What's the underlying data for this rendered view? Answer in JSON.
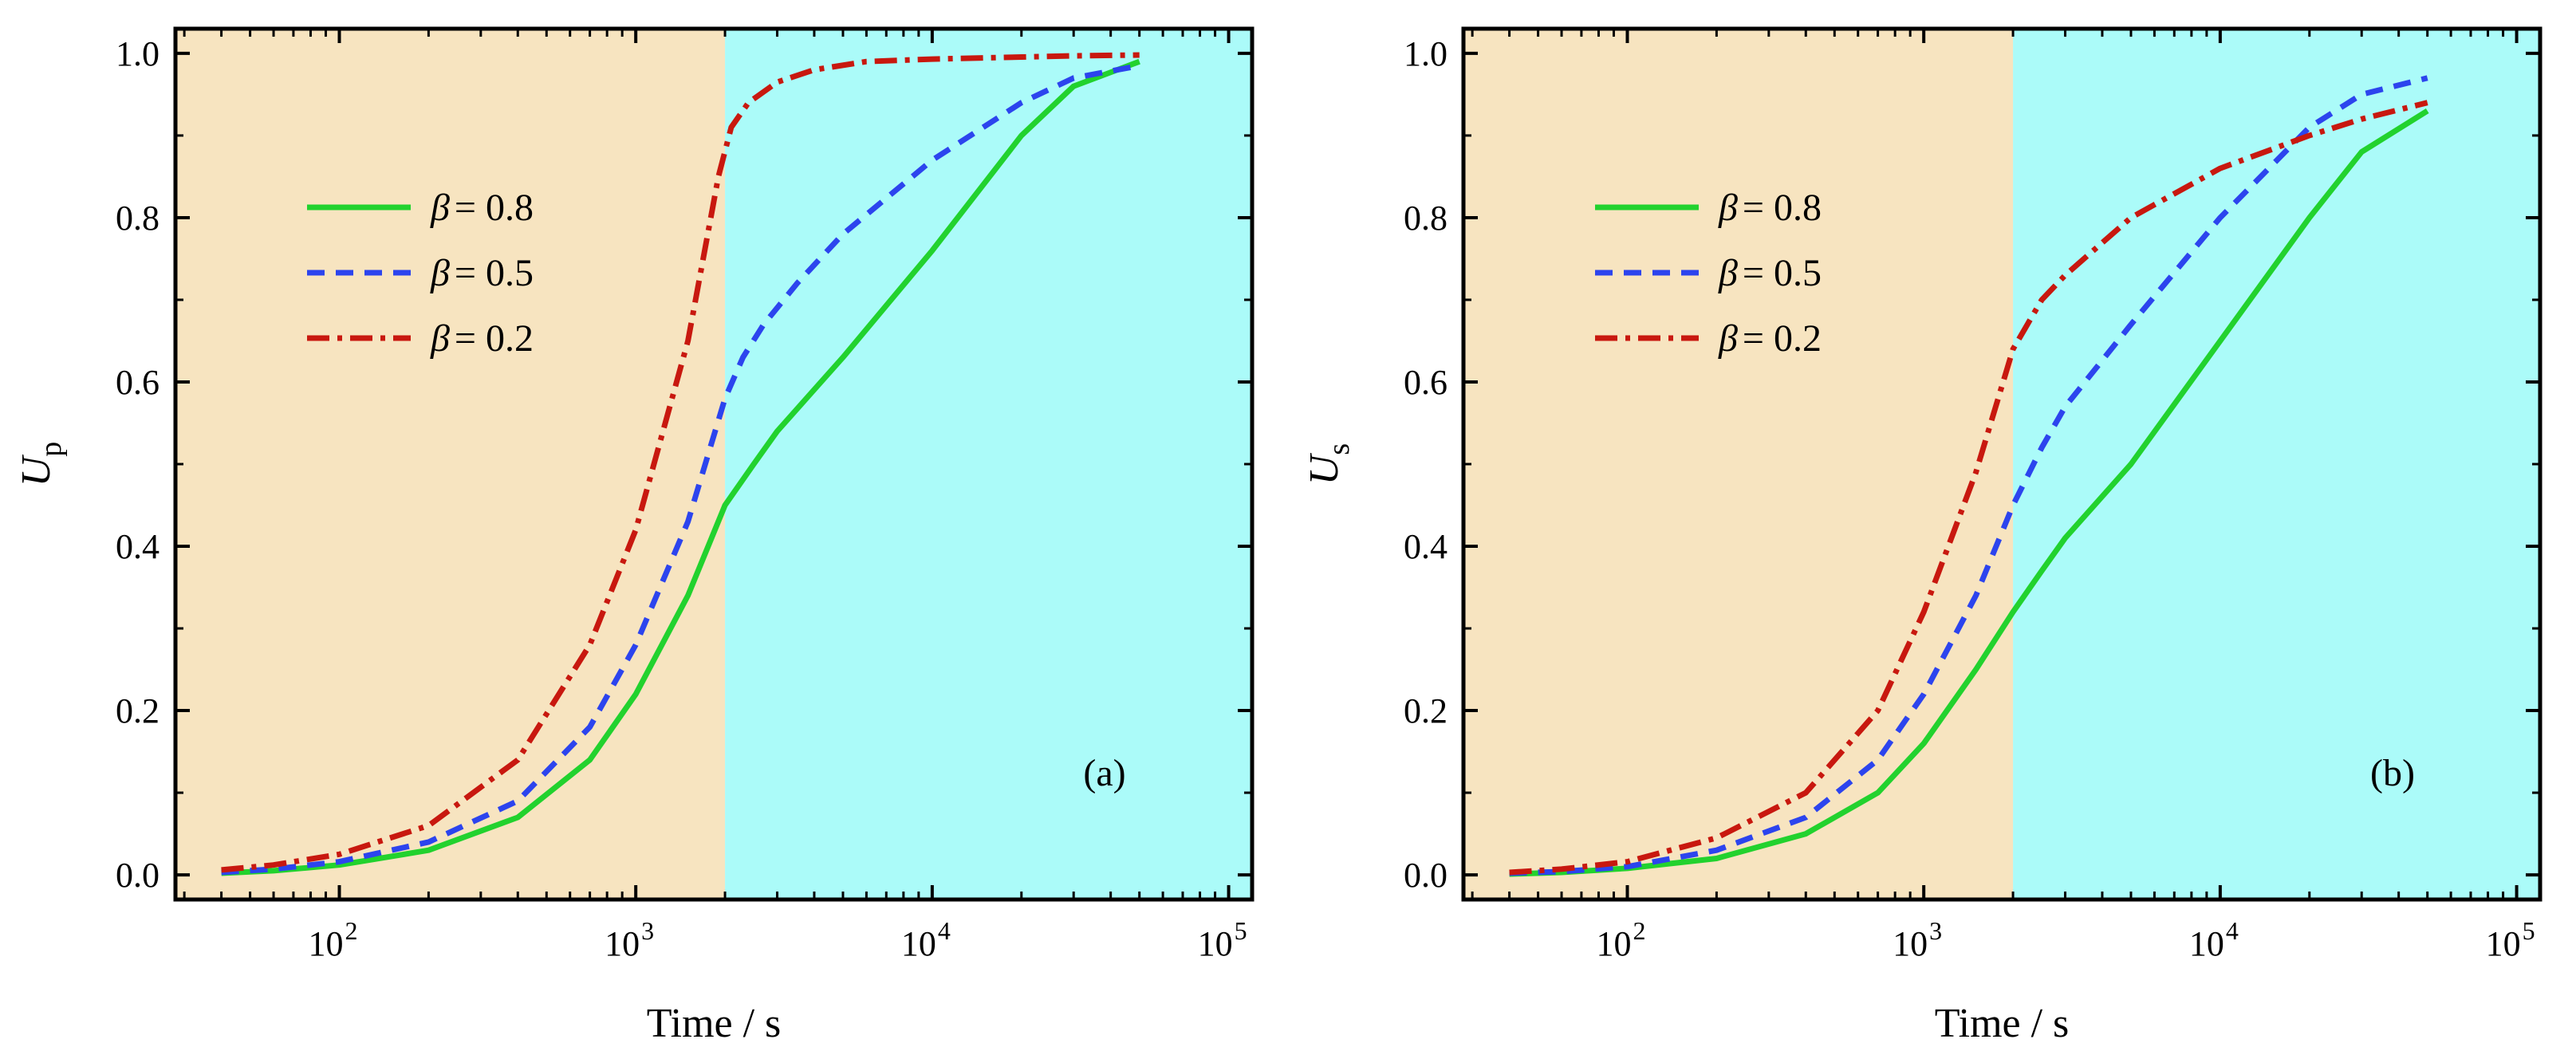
{
  "chart_data": [
    {
      "type": "line",
      "panel_label": "(a)",
      "xlabel": "Time / s",
      "ylabel": "U",
      "ylabel_sub": "p",
      "xscale": "log",
      "xlim": [
        28,
        120000
      ],
      "ylim": [
        -0.03,
        1.03
      ],
      "x_ticks": [
        {
          "value": 100,
          "base": "10",
          "exp": "2"
        },
        {
          "value": 1000,
          "base": "10",
          "exp": "3"
        },
        {
          "value": 10000,
          "base": "10",
          "exp": "4"
        },
        {
          "value": 100000,
          "base": "10",
          "exp": "5"
        }
      ],
      "y_ticks": [
        "0.0",
        "0.2",
        "0.4",
        "0.6",
        "0.8",
        "1.0"
      ],
      "regions": [
        {
          "from": 28,
          "to": 2000,
          "color": "#f7e4c0"
        },
        {
          "from": 2000,
          "to": 120000,
          "color": "#abfbf9"
        }
      ],
      "legend_position": "upper-left",
      "series": [
        {
          "name": "β = 0.8",
          "symbol": "β",
          "eq": "= 0.8",
          "color": "#22d22e",
          "dash": "none",
          "x": [
            40,
            60,
            100,
            200,
            400,
            700,
            1000,
            1500,
            2000,
            2500,
            3000,
            5000,
            10000,
            20000,
            30000,
            50000
          ],
          "y": [
            0.002,
            0.005,
            0.012,
            0.03,
            0.07,
            0.14,
            0.22,
            0.34,
            0.45,
            0.5,
            0.54,
            0.63,
            0.76,
            0.9,
            0.96,
            0.99
          ]
        },
        {
          "name": "β = 0.5",
          "symbol": "β",
          "eq": "= 0.5",
          "color": "#2c44ee",
          "dash": "22,14",
          "x": [
            40,
            60,
            100,
            200,
            400,
            700,
            1000,
            1500,
            2000,
            2300,
            2700,
            3500,
            5000,
            10000,
            20000,
            30000,
            50000
          ],
          "y": [
            0.003,
            0.007,
            0.016,
            0.04,
            0.09,
            0.18,
            0.28,
            0.43,
            0.58,
            0.63,
            0.67,
            0.72,
            0.78,
            0.87,
            0.94,
            0.97,
            0.985
          ]
        },
        {
          "name": "β = 0.2",
          "symbol": "β",
          "eq": "= 0.2",
          "color": "#c8180f",
          "dash": "28,10,6,10",
          "x": [
            40,
            60,
            100,
            200,
            400,
            700,
            1000,
            1500,
            1900,
            2100,
            2400,
            3000,
            4000,
            6000,
            10000,
            30000,
            50000
          ],
          "y": [
            0.006,
            0.012,
            0.025,
            0.06,
            0.14,
            0.28,
            0.42,
            0.65,
            0.85,
            0.91,
            0.94,
            0.965,
            0.98,
            0.99,
            0.993,
            0.997,
            0.998
          ]
        }
      ]
    },
    {
      "type": "line",
      "panel_label": "(b)",
      "xlabel": "Time / s",
      "ylabel": "U",
      "ylabel_sub": "s",
      "xscale": "log",
      "xlim": [
        28,
        120000
      ],
      "ylim": [
        -0.03,
        1.03
      ],
      "x_ticks": [
        {
          "value": 100,
          "base": "10",
          "exp": "2"
        },
        {
          "value": 1000,
          "base": "10",
          "exp": "3"
        },
        {
          "value": 10000,
          "base": "10",
          "exp": "4"
        },
        {
          "value": 100000,
          "base": "10",
          "exp": "5"
        }
      ],
      "y_ticks": [
        "0.0",
        "0.2",
        "0.4",
        "0.6",
        "0.8",
        "1.0"
      ],
      "regions": [
        {
          "from": 28,
          "to": 2000,
          "color": "#f7e4c0"
        },
        {
          "from": 2000,
          "to": 120000,
          "color": "#abfbf9"
        }
      ],
      "legend_position": "upper-left",
      "series": [
        {
          "name": "β = 0.8",
          "symbol": "β",
          "eq": "= 0.8",
          "color": "#22d22e",
          "dash": "none",
          "x": [
            40,
            60,
            100,
            200,
            400,
            700,
            1000,
            1500,
            2000,
            2500,
            3000,
            5000,
            10000,
            20000,
            30000,
            50000
          ],
          "y": [
            0.001,
            0.003,
            0.008,
            0.02,
            0.05,
            0.1,
            0.16,
            0.25,
            0.32,
            0.37,
            0.41,
            0.5,
            0.65,
            0.8,
            0.88,
            0.93
          ]
        },
        {
          "name": "β = 0.5",
          "symbol": "β",
          "eq": "= 0.5",
          "color": "#2c44ee",
          "dash": "22,14",
          "x": [
            40,
            60,
            100,
            200,
            400,
            700,
            1000,
            1500,
            2000,
            2500,
            3000,
            5000,
            10000,
            20000,
            30000,
            50000
          ],
          "y": [
            0.002,
            0.004,
            0.01,
            0.03,
            0.07,
            0.14,
            0.22,
            0.34,
            0.45,
            0.52,
            0.57,
            0.67,
            0.8,
            0.91,
            0.95,
            0.97
          ]
        },
        {
          "name": "β = 0.2",
          "symbol": "β",
          "eq": "= 0.2",
          "color": "#c8180f",
          "dash": "28,10,6,10",
          "x": [
            40,
            60,
            100,
            200,
            400,
            700,
            1000,
            1500,
            2000,
            2500,
            3000,
            5000,
            10000,
            20000,
            30000,
            50000
          ],
          "y": [
            0.003,
            0.007,
            0.016,
            0.045,
            0.1,
            0.2,
            0.32,
            0.49,
            0.64,
            0.7,
            0.73,
            0.8,
            0.86,
            0.9,
            0.92,
            0.94
          ]
        }
      ]
    }
  ]
}
